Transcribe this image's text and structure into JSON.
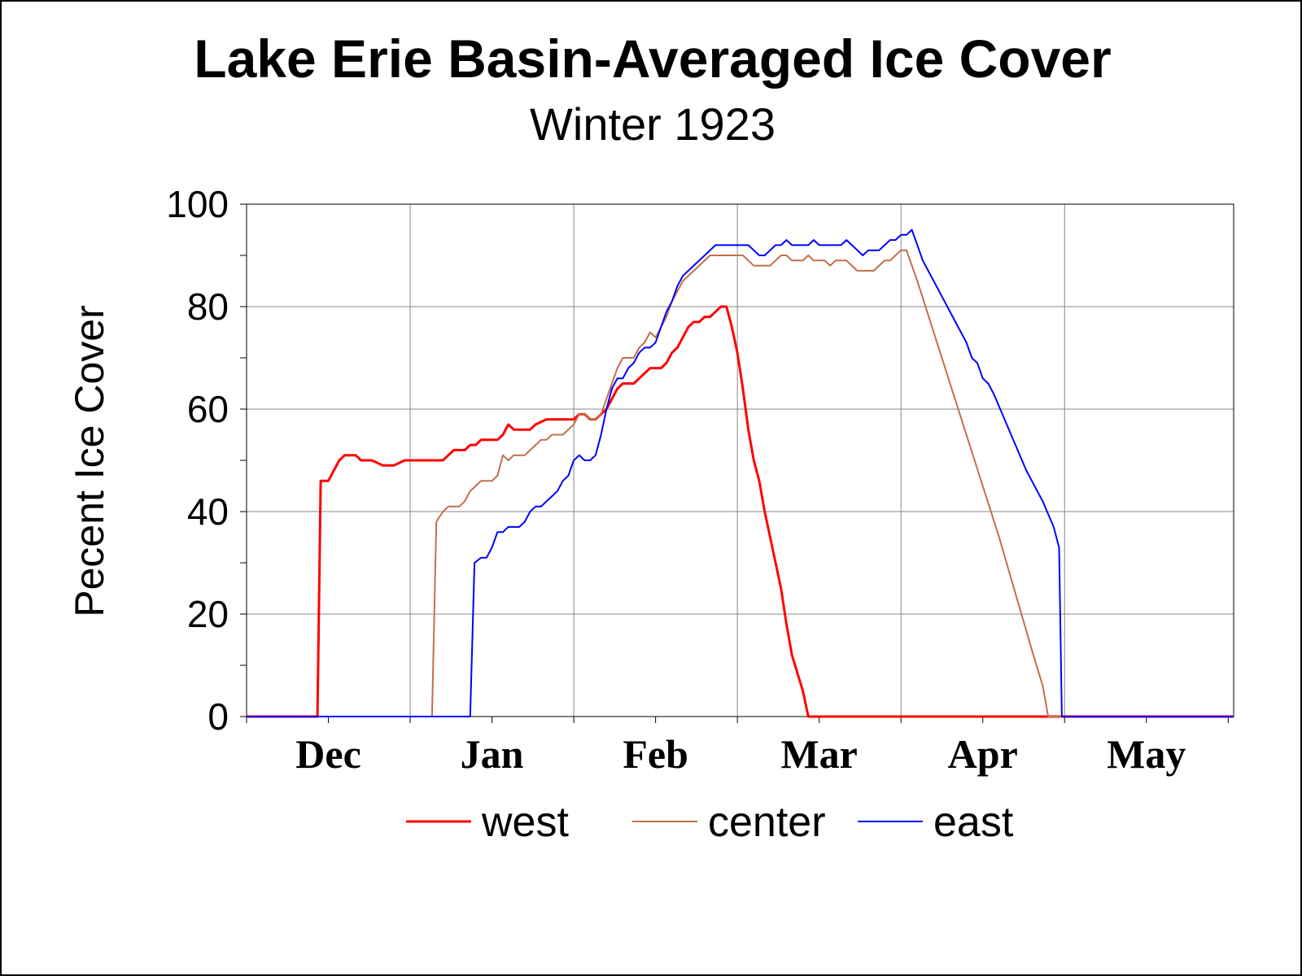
{
  "chart_data": {
    "type": "line",
    "title": "Lake Erie Basin-Averaged Ice Cover",
    "subtitle": "Winter 1923",
    "xlabel": "",
    "ylabel": "Pecent Ice Cover",
    "ylim": [
      0,
      100
    ],
    "yticks": [
      "0",
      "20",
      "40",
      "60",
      "80",
      "100"
    ],
    "x_range_days": [
      1,
      182
    ],
    "x_note": "days since Nov 1",
    "month_labels": [
      {
        "label": "Dec",
        "day": 46
      },
      {
        "label": "Jan",
        "day": 77
      },
      {
        "label": "Feb",
        "day": 107
      },
      {
        "label": "Mar",
        "day": 137
      },
      {
        "label": "Apr",
        "day": 167
      },
      {
        "label": "May",
        "day": 197
      }
    ],
    "month_labels_order": [
      "Dec",
      "Jan",
      "Feb",
      "Mar",
      "Apr",
      "May"
    ],
    "grid": true,
    "legend_position": "bottom",
    "series": [
      {
        "name": "west",
        "color": "#ff0000",
        "x": [
          1,
          14,
          14.6,
          16,
          17,
          18,
          19,
          20,
          21,
          22,
          23,
          24,
          26,
          27,
          28,
          30,
          34,
          35,
          37,
          38,
          39,
          40,
          41,
          42,
          43,
          44,
          45,
          46,
          47,
          48,
          49,
          50,
          51,
          52,
          53,
          54,
          56,
          57,
          58,
          59,
          60,
          61,
          62,
          63,
          64,
          65,
          66,
          67,
          68,
          69,
          70,
          71,
          72,
          73,
          74,
          75,
          76,
          77,
          78,
          79,
          80,
          81,
          82,
          83,
          84,
          85,
          86,
          87,
          88,
          89,
          90,
          91,
          92,
          93,
          94,
          95,
          96,
          97,
          98,
          99,
          100,
          101,
          103,
          104,
          105,
          107,
          108,
          110,
          112,
          120,
          182
        ],
        "values": [
          0,
          0,
          46,
          46,
          48,
          50,
          51,
          51,
          51,
          50,
          50,
          50,
          49,
          49,
          49,
          50,
          50,
          50,
          50,
          51,
          52,
          52,
          52,
          53,
          53,
          54,
          54,
          54,
          54,
          55,
          57,
          56,
          56,
          56,
          56,
          57,
          58,
          58,
          58,
          58,
          58,
          58,
          59,
          59,
          58,
          58,
          59,
          60,
          62,
          64,
          65,
          65,
          65,
          66,
          67,
          68,
          68,
          68,
          69,
          71,
          72,
          74,
          76,
          77,
          77,
          78,
          78,
          79,
          80,
          80,
          76,
          71,
          64,
          56,
          50,
          46,
          40,
          35,
          30,
          25,
          18,
          12,
          5,
          0,
          0,
          0,
          0,
          0,
          0,
          0,
          0
        ]
      },
      {
        "name": "center",
        "color": "#c0704a",
        "x": [
          1,
          35,
          35.8,
          37,
          38,
          39,
          40,
          41,
          42,
          43,
          44,
          45,
          46,
          47,
          48,
          49,
          50,
          51,
          52,
          53,
          54,
          55,
          56,
          57,
          58,
          59,
          60,
          61,
          62,
          63,
          64,
          65,
          66,
          67,
          68,
          69,
          70,
          71,
          72,
          73,
          74,
          75,
          76,
          77,
          78,
          79,
          80,
          81,
          82,
          83,
          84,
          85,
          86,
          87,
          88,
          89,
          90,
          91,
          92,
          93,
          94,
          95,
          96,
          97,
          98,
          99,
          100,
          101,
          102,
          103,
          104,
          105,
          106,
          107,
          108,
          109,
          110,
          111,
          112,
          113,
          114,
          115,
          116,
          117,
          118,
          119,
          120,
          121,
          122,
          124,
          127,
          130,
          133,
          136,
          139,
          142,
          145,
          147,
          148,
          150,
          182
        ],
        "values": [
          0,
          0,
          38,
          40,
          41,
          41,
          41,
          42,
          44,
          45,
          46,
          46,
          46,
          47,
          51,
          50,
          51,
          51,
          51,
          52,
          53,
          54,
          54,
          55,
          55,
          55,
          56,
          57,
          59,
          59,
          58,
          58,
          59,
          62,
          65,
          68,
          70,
          70,
          70,
          72,
          73,
          75,
          74,
          76,
          78,
          81,
          83,
          85,
          86,
          87,
          88,
          89,
          90,
          90,
          90,
          90,
          90,
          90,
          90,
          89,
          88,
          88,
          88,
          88,
          89,
          90,
          90,
          89,
          89,
          89,
          90,
          89,
          89,
          89,
          88,
          89,
          89,
          89,
          88,
          87,
          87,
          87,
          87,
          88,
          89,
          89,
          90,
          91,
          91,
          85,
          75,
          65,
          55,
          45,
          35,
          24,
          13,
          6,
          0,
          0,
          0
        ]
      },
      {
        "name": "east",
        "color": "#0000ff",
        "x": [
          1,
          42,
          42.8,
          44,
          45,
          46,
          47,
          48,
          49,
          50,
          51,
          52,
          53,
          54,
          55,
          56,
          57,
          58,
          59,
          60,
          61,
          62,
          63,
          64,
          65,
          66,
          67,
          68,
          69,
          70,
          71,
          72,
          73,
          74,
          75,
          76,
          77,
          78,
          79,
          80,
          81,
          82,
          83,
          84,
          85,
          86,
          87,
          88,
          89,
          90,
          91,
          92,
          93,
          94,
          95,
          96,
          97,
          98,
          99,
          100,
          101,
          102,
          103,
          104,
          105,
          106,
          107,
          108,
          109,
          110,
          111,
          112,
          113,
          114,
          115,
          116,
          117,
          118,
          119,
          120,
          121,
          122,
          123,
          124,
          125,
          127,
          129,
          131,
          133,
          134,
          135,
          136,
          137,
          138,
          140,
          142,
          144,
          146,
          147,
          149,
          150,
          150.5,
          182
        ],
        "values": [
          0,
          0,
          30,
          31,
          31,
          33,
          36,
          36,
          37,
          37,
          37,
          38,
          40,
          41,
          41,
          42,
          43,
          44,
          46,
          47,
          50,
          51,
          50,
          50,
          51,
          55,
          60,
          64,
          66,
          66,
          68,
          69,
          71,
          72,
          72,
          73,
          76,
          79,
          81,
          84,
          86,
          87,
          88,
          89,
          90,
          91,
          92,
          92,
          92,
          92,
          92,
          92,
          92,
          91,
          90,
          90,
          91,
          92,
          92,
          93,
          92,
          92,
          92,
          92,
          93,
          92,
          92,
          92,
          92,
          92,
          93,
          92,
          91,
          90,
          91,
          91,
          91,
          92,
          93,
          93,
          94,
          94,
          95,
          92,
          89,
          85,
          81,
          77,
          73,
          70,
          69,
          66,
          65,
          63,
          58,
          53,
          48,
          44,
          42,
          37,
          33,
          0,
          0
        ]
      }
    ]
  }
}
